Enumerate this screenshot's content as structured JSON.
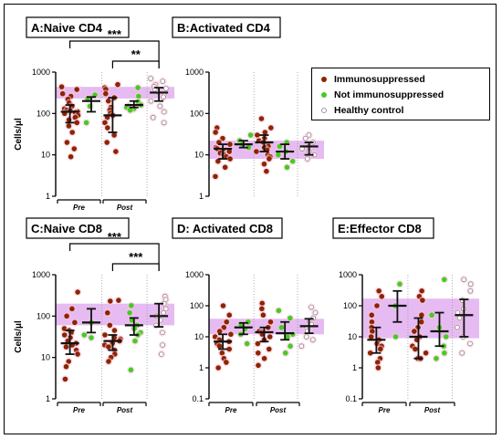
{
  "colors": {
    "immunosuppressed": "#8b2500",
    "not_immunosuppressed": "#44cc22",
    "healthy_control": "#bbbbbb",
    "reference_band": "#cf84e8",
    "halo": "#ffc6dd"
  },
  "legend": {
    "items": [
      {
        "label": "Immunosuppressed",
        "color": "#8b2500",
        "hollow": false
      },
      {
        "label": "Not immunosuppressed",
        "color": "#44cc22",
        "hollow": false
      },
      {
        "label": "Healthy control",
        "color": "#999999",
        "hollow": true
      }
    ]
  },
  "chart_data": [
    {
      "type": "scatter",
      "title": "A:Naive CD4",
      "ylabel": "Cells/μl",
      "yscale": "log",
      "ylim": [
        1,
        1000
      ],
      "yticks": [
        "1",
        "10",
        "100",
        "1000"
      ],
      "group_labels": [
        "Pre",
        "Post"
      ],
      "reference_band": [
        230,
        440
      ],
      "significance": [
        {
          "label": "***",
          "from": "Pre Immunosuppressed",
          "to": "Healthy control"
        },
        {
          "label": "**",
          "from": "Post Immunosuppressed",
          "to": "Healthy control"
        }
      ],
      "series": [
        {
          "group": "Pre",
          "class": "immunosuppressed",
          "values": [
            440,
            380,
            300,
            260,
            220,
            180,
            150,
            130,
            120,
            115,
            110,
            105,
            100,
            90,
            80,
            70,
            60,
            50,
            35,
            20,
            14,
            9
          ],
          "median": 110,
          "q1": 60,
          "q3": 160
        },
        {
          "group": "Pre",
          "class": "not_immunosuppressed",
          "values": [
            280,
            230,
            150,
            60
          ],
          "median": 200,
          "q1": 110,
          "q3": 250
        },
        {
          "group": "Post",
          "class": "immunosuppressed",
          "values": [
            500,
            420,
            380,
            300,
            240,
            200,
            140,
            120,
            100,
            90,
            80,
            60,
            45,
            30,
            20,
            12
          ],
          "median": 90,
          "q1": 35,
          "q3": 240
        },
        {
          "group": "Post",
          "class": "not_immunosuppressed",
          "values": [
            420,
            260,
            190,
            160,
            150,
            140,
            130,
            120
          ],
          "median": 160,
          "q1": 140,
          "q3": 200
        },
        {
          "group": "Healthy control",
          "class": "healthy_control",
          "values": [
            700,
            600,
            500,
            450,
            400,
            380,
            330,
            280,
            250,
            200,
            150,
            110,
            80,
            60
          ],
          "median": 320,
          "q1": 200,
          "q3": 420
        }
      ]
    },
    {
      "type": "scatter",
      "title": "B:Activated CD4",
      "yscale": "log",
      "ylim": [
        1,
        1000
      ],
      "yticks": [
        "1",
        "10",
        "100",
        "1000"
      ],
      "reference_band": [
        8,
        22
      ],
      "series": [
        {
          "group": "Pre",
          "class": "immunosuppressed",
          "values": [
            45,
            35,
            25,
            20,
            18,
            15,
            14,
            13,
            12,
            11,
            10,
            9,
            8,
            7,
            5,
            3
          ],
          "median": 14,
          "q1": 8,
          "q3": 18
        },
        {
          "group": "Pre",
          "class": "not_immunosuppressed",
          "values": [
            30,
            22,
            18,
            15
          ],
          "median": 18,
          "q1": 15,
          "q3": 22
        },
        {
          "group": "Post",
          "class": "immunosuppressed",
          "values": [
            75,
            45,
            35,
            30,
            25,
            22,
            20,
            18,
            16,
            15,
            13,
            12,
            10,
            9,
            8,
            6,
            4
          ],
          "median": 20,
          "q1": 12,
          "q3": 30
        },
        {
          "group": "Post",
          "class": "not_immunosuppressed",
          "values": [
            20,
            16,
            12,
            10,
            7,
            5
          ],
          "median": 12,
          "q1": 8,
          "q3": 18
        },
        {
          "group": "Healthy control",
          "class": "healthy_control",
          "values": [
            30,
            25,
            20,
            18,
            16,
            14,
            12,
            10,
            8
          ],
          "median": 16,
          "q1": 10,
          "q3": 20
        }
      ]
    },
    {
      "type": "scatter",
      "title": "C:Naive CD8",
      "ylabel": "Cells/μl",
      "yscale": "log",
      "ylim": [
        1,
        1000
      ],
      "yticks": [
        "1",
        "10",
        "100",
        "1000"
      ],
      "group_labels": [
        "Pre",
        "Post"
      ],
      "reference_band": [
        60,
        200
      ],
      "significance": [
        {
          "label": "***",
          "from": "Pre Immunosuppressed",
          "to": "Healthy control"
        },
        {
          "label": "***",
          "from": "Post Immunosuppressed",
          "to": "Healthy control"
        }
      ],
      "series": [
        {
          "group": "Pre",
          "class": "immunosuppressed",
          "values": [
            380,
            150,
            100,
            70,
            50,
            45,
            40,
            35,
            30,
            25,
            22,
            20,
            18,
            15,
            12,
            8,
            6,
            3
          ],
          "median": 22,
          "q1": 12,
          "q3": 45
        },
        {
          "group": "Pre",
          "class": "not_immunosuppressed",
          "values": [
            70,
            35,
            30
          ],
          "median": 70,
          "q1": 40,
          "q3": 150
        },
        {
          "group": "Post",
          "class": "immunosuppressed",
          "values": [
            240,
            230,
            120,
            60,
            45,
            35,
            30,
            28,
            25,
            22,
            20,
            18,
            15,
            12,
            10,
            8
          ],
          "median": 25,
          "q1": 15,
          "q3": 35
        },
        {
          "group": "Post",
          "class": "not_immunosuppressed",
          "values": [
            180,
            120,
            80,
            60,
            50,
            40,
            35,
            25,
            5
          ],
          "median": 60,
          "q1": 35,
          "q3": 90
        },
        {
          "group": "Healthy control",
          "class": "healthy_control",
          "values": [
            300,
            250,
            200,
            150,
            120,
            100,
            80,
            60,
            40,
            20,
            12
          ],
          "median": 100,
          "q1": 55,
          "q3": 200
        }
      ]
    },
    {
      "type": "scatter",
      "title": "D: Activated CD8",
      "yscale": "log",
      "ylim": [
        0.1,
        1000
      ],
      "yticks": [
        "0.1",
        "1",
        "10",
        "100",
        "1000"
      ],
      "group_labels": [
        "Pre",
        "Post"
      ],
      "reference_band": [
        12,
        38
      ],
      "series": [
        {
          "group": "Pre",
          "class": "immunosuppressed",
          "values": [
            100,
            50,
            30,
            20,
            15,
            12,
            10,
            8,
            7,
            6,
            5,
            4,
            3,
            2,
            1.5,
            1
          ],
          "median": 7,
          "q1": 4,
          "q3": 12
        },
        {
          "group": "Pre",
          "class": "not_immunosuppressed",
          "values": [
            30,
            25,
            18,
            12,
            6
          ],
          "median": 20,
          "q1": 12,
          "q3": 28
        },
        {
          "group": "Post",
          "class": "immunosuppressed",
          "values": [
            120,
            80,
            50,
            30,
            20,
            15,
            14,
            12,
            10,
            8,
            6,
            4,
            3,
            2,
            1.2
          ],
          "median": 14,
          "q1": 7,
          "q3": 20
        },
        {
          "group": "Post",
          "class": "not_immunosuppressed",
          "values": [
            70,
            40,
            20,
            12,
            10,
            5,
            3
          ],
          "median": 13,
          "q1": 8,
          "q3": 30
        },
        {
          "group": "Healthy control",
          "class": "healthy_control",
          "values": [
            90,
            60,
            40,
            30,
            25,
            20,
            15,
            10,
            8,
            5
          ],
          "median": 22,
          "q1": 13,
          "q3": 38
        }
      ]
    },
    {
      "type": "scatter",
      "title": "E:Effector CD8",
      "yscale": "log",
      "ylim": [
        0.1,
        1000
      ],
      "yticks": [
        "0.1",
        "1",
        "10",
        "100",
        "1000"
      ],
      "group_labels": [
        "Pre",
        "Post"
      ],
      "reference_band": [
        9,
        170
      ],
      "series": [
        {
          "group": "Pre",
          "class": "immunosuppressed",
          "values": [
            300,
            200,
            100,
            50,
            30,
            20,
            15,
            10,
            8,
            6,
            5,
            4,
            3,
            2,
            1.5,
            1
          ],
          "median": 8,
          "q1": 3,
          "q3": 20
        },
        {
          "group": "Pre",
          "class": "not_immunosuppressed",
          "values": [
            500,
            100,
            10
          ],
          "median": 100,
          "q1": 30,
          "q3": 300
        },
        {
          "group": "Post",
          "class": "immunosuppressed",
          "values": [
            300,
            200,
            150,
            50,
            30,
            20,
            15,
            10,
            8,
            5,
            4,
            3,
            2,
            2
          ],
          "median": 10,
          "q1": 2,
          "q3": 40
        },
        {
          "group": "Post",
          "class": "not_immunosuppressed",
          "values": [
            700,
            50,
            20,
            10,
            5,
            3,
            2
          ],
          "median": 15,
          "q1": 5,
          "q3": 60
        },
        {
          "group": "Healthy control",
          "class": "healthy_control",
          "values": [
            700,
            500,
            300,
            150,
            80,
            60,
            40,
            20,
            10,
            6,
            3
          ],
          "median": 50,
          "q1": 10,
          "q3": 160
        }
      ]
    }
  ]
}
